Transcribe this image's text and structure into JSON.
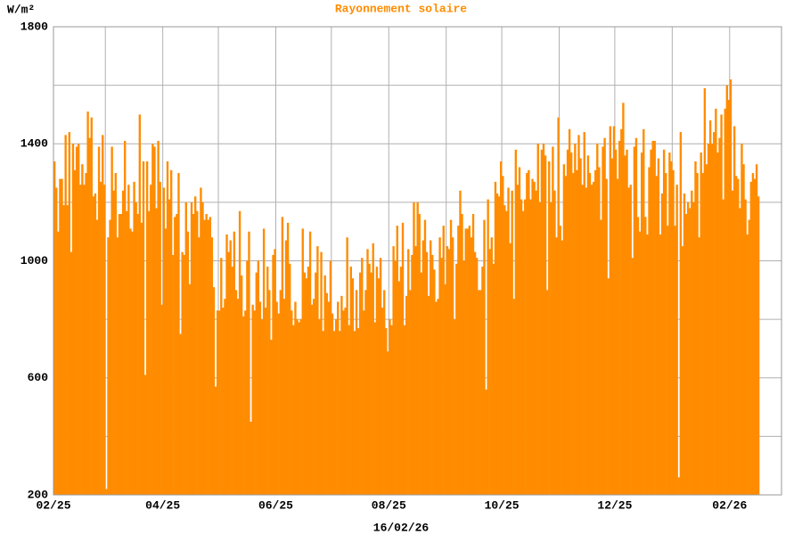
{
  "chart_data": {
    "type": "bar",
    "title": "Rayonnement solaire",
    "y_label": "W/m²",
    "date_label": "16/02/26",
    "color": "#ff8c00",
    "values": [
      1340,
      1250,
      1100,
      1280,
      1280,
      1190,
      1430,
      1190,
      1440,
      1030,
      1400,
      1310,
      1390,
      1400,
      1260,
      1330,
      1260,
      1300,
      1510,
      1420,
      1490,
      1220,
      1230,
      1140,
      1390,
      1270,
      1430,
      1260,
      220,
      1080,
      1140,
      1390,
      1240,
      1300,
      1080,
      1160,
      1160,
      1240,
      1410,
      1170,
      1260,
      1110,
      1100,
      1270,
      1200,
      1160,
      1500,
      1130,
      1340,
      610,
      1340,
      1170,
      1260,
      1400,
      1390,
      1180,
      1410,
      1270,
      850,
      1250,
      1110,
      1340,
      1210,
      1310,
      1020,
      1150,
      1160,
      1300,
      750,
      1030,
      1020,
      1200,
      1100,
      920,
      1200,
      1160,
      1220,
      1170,
      1080,
      1250,
      1200,
      1140,
      1160,
      1140,
      1150,
      1080,
      910,
      570,
      830,
      830,
      1010,
      840,
      870,
      1090,
      1030,
      1070,
      980,
      1100,
      900,
      870,
      1170,
      950,
      810,
      830,
      1000,
      1100,
      450,
      850,
      830,
      960,
      1000,
      860,
      800,
      1110,
      840,
      980,
      900,
      730,
      1020,
      1040,
      860,
      820,
      900,
      1150,
      870,
      1070,
      1130,
      990,
      830,
      780,
      860,
      800,
      790,
      800,
      1110,
      960,
      940,
      980,
      1100,
      850,
      870,
      960,
      1050,
      800,
      1030,
      760,
      950,
      890,
      860,
      1000,
      820,
      760,
      800,
      860,
      760,
      880,
      830,
      840,
      1080,
      780,
      980,
      940,
      760,
      900,
      770,
      960,
      1010,
      830,
      900,
      1040,
      990,
      960,
      1060,
      790,
      980,
      940,
      1010,
      840,
      900,
      770,
      690,
      800,
      780,
      1050,
      1000,
      1120,
      930,
      980,
      1130,
      780,
      880,
      1040,
      900,
      1020,
      1200,
      1050,
      1200,
      1160,
      960,
      1070,
      1140,
      1030,
      880,
      1070,
      1020,
      970,
      860,
      870,
      1080,
      1010,
      1120,
      920,
      1050,
      1040,
      1140,
      1080,
      800,
      990,
      1120,
      1240,
      1160,
      1000,
      1110,
      1110,
      1120,
      1080,
      1160,
      1030,
      1010,
      900,
      900,
      980,
      1140,
      560,
      1210,
      1040,
      1080,
      990,
      1270,
      1230,
      1220,
      1340,
      1290,
      1190,
      1170,
      1250,
      1060,
      1240,
      870,
      1380,
      1260,
      1320,
      1210,
      1170,
      1210,
      1300,
      1310,
      1210,
      1280,
      1270,
      1240,
      1400,
      1200,
      1380,
      1400,
      1360,
      900,
      1340,
      1200,
      1390,
      1240,
      1080,
      1490,
      1120,
      1070,
      1330,
      1290,
      1380,
      1450,
      1370,
      1300,
      1400,
      1310,
      1430,
      1350,
      1260,
      1440,
      1250,
      1360,
      1300,
      1260,
      1270,
      1310,
      1400,
      1320,
      1140,
      1390,
      1420,
      1280,
      940,
      1460,
      1350,
      1460,
      1380,
      1280,
      1410,
      1450,
      1540,
      1360,
      1380,
      1250,
      1260,
      1010,
      1390,
      1420,
      1150,
      1100,
      1370,
      1450,
      1150,
      1090,
      1320,
      1380,
      1410,
      1410,
      1290,
      1350,
      1090,
      1230,
      1380,
      1300,
      1120,
      1370,
      1340,
      1310,
      1120,
      1260,
      260,
      1440,
      1050,
      1230,
      1160,
      1200,
      1180,
      1240,
      1200,
      1340,
      1300,
      1080,
      1370,
      1300,
      1590,
      1330,
      1400,
      1480,
      1400,
      1440,
      1520,
      1370,
      1420,
      1500,
      1210,
      1520,
      1600,
      1550,
      1620,
      1240,
      1460,
      1290,
      1280,
      1180,
      1400,
      1330,
      1210,
      1090,
      1140,
      1270,
      1300,
      1280,
      1330,
      1220
    ],
    "xticks": [
      "02/25",
      null,
      "04/25",
      null,
      "06/25",
      null,
      "08/25",
      null,
      "10/25",
      null,
      "12/25",
      null,
      "02/26"
    ],
    "ylim": [
      200,
      1800
    ],
    "yticks": [
      200,
      600,
      1000,
      1400,
      1800
    ],
    "minor_yticks": [
      400,
      800,
      1200,
      1600
    ],
    "grid": true
  }
}
